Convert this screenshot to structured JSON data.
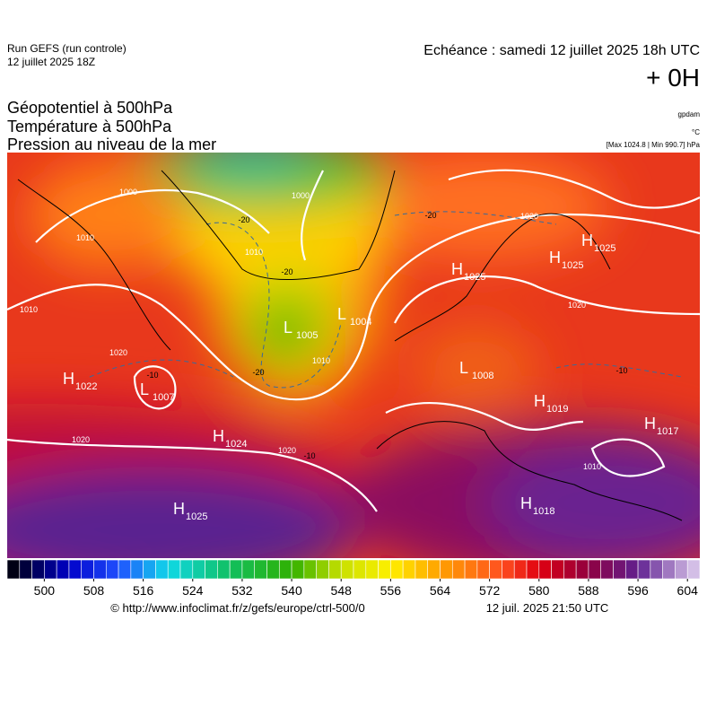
{
  "header": {
    "run": "Run GEFS (run controle)",
    "run_date": "12 juillet 2025 18Z",
    "echeance": "Echéance : samedi 12 juillet 2025 18h UTC",
    "offset": "+ 0H"
  },
  "titles": [
    "Géopotentiel à 500hPa",
    "Température à 500hPa",
    "Pression au niveau de la mer"
  ],
  "units": {
    "geopotential": "gpdam",
    "temperature": "°C",
    "pressure": "[Max 1024.8 | Min 990.7] hPa"
  },
  "pressure_centers": [
    {
      "kind": "H",
      "value": "1022"
    },
    {
      "kind": "L",
      "value": "1007"
    },
    {
      "kind": "H",
      "value": "1024"
    },
    {
      "kind": "H",
      "value": "1025"
    },
    {
      "kind": "L",
      "value": "1005"
    },
    {
      "kind": "L",
      "value": "1004"
    },
    {
      "kind": "H",
      "value": "1025"
    },
    {
      "kind": "H",
      "value": "1025"
    },
    {
      "kind": "H",
      "value": "1025"
    },
    {
      "kind": "L",
      "value": "1008"
    },
    {
      "kind": "H",
      "value": "1019"
    },
    {
      "kind": "H",
      "value": "1017"
    },
    {
      "kind": "H",
      "value": "1018"
    }
  ],
  "isobar_labels": [
    "1000",
    "1010",
    "1010",
    "1020",
    "1020",
    "1020",
    "1010",
    "1000",
    "1020",
    "1020",
    "1010",
    "1010"
  ],
  "isotherm_labels": [
    "-20",
    "-20",
    "-20",
    "-10",
    "-20",
    "-10",
    "-10"
  ],
  "colorbar": {
    "range": [
      494,
      606
    ],
    "step": 2,
    "ticks": [
      500,
      508,
      516,
      524,
      532,
      540,
      548,
      556,
      564,
      572,
      580,
      588,
      596,
      604
    ],
    "stops": [
      {
        "value": 494,
        "color": "#000000"
      },
      {
        "value": 504,
        "color": "#0000c8"
      },
      {
        "value": 512,
        "color": "#2050ff"
      },
      {
        "value": 520,
        "color": "#10d8e8"
      },
      {
        "value": 530,
        "color": "#10c060"
      },
      {
        "value": 540,
        "color": "#30b000"
      },
      {
        "value": 548,
        "color": "#c8e000"
      },
      {
        "value": 556,
        "color": "#fff000"
      },
      {
        "value": 564,
        "color": "#ffa000"
      },
      {
        "value": 574,
        "color": "#ff5020"
      },
      {
        "value": 580,
        "color": "#e00010"
      },
      {
        "value": 588,
        "color": "#900040"
      },
      {
        "value": 596,
        "color": "#602090"
      },
      {
        "value": 606,
        "color": "#e0d0f0"
      }
    ]
  },
  "footer": {
    "source": "© http://www.infoclimat.fr/z/gefs/europe/ctrl-500/0",
    "generated": "12 juil. 2025 21:50 UTC"
  }
}
